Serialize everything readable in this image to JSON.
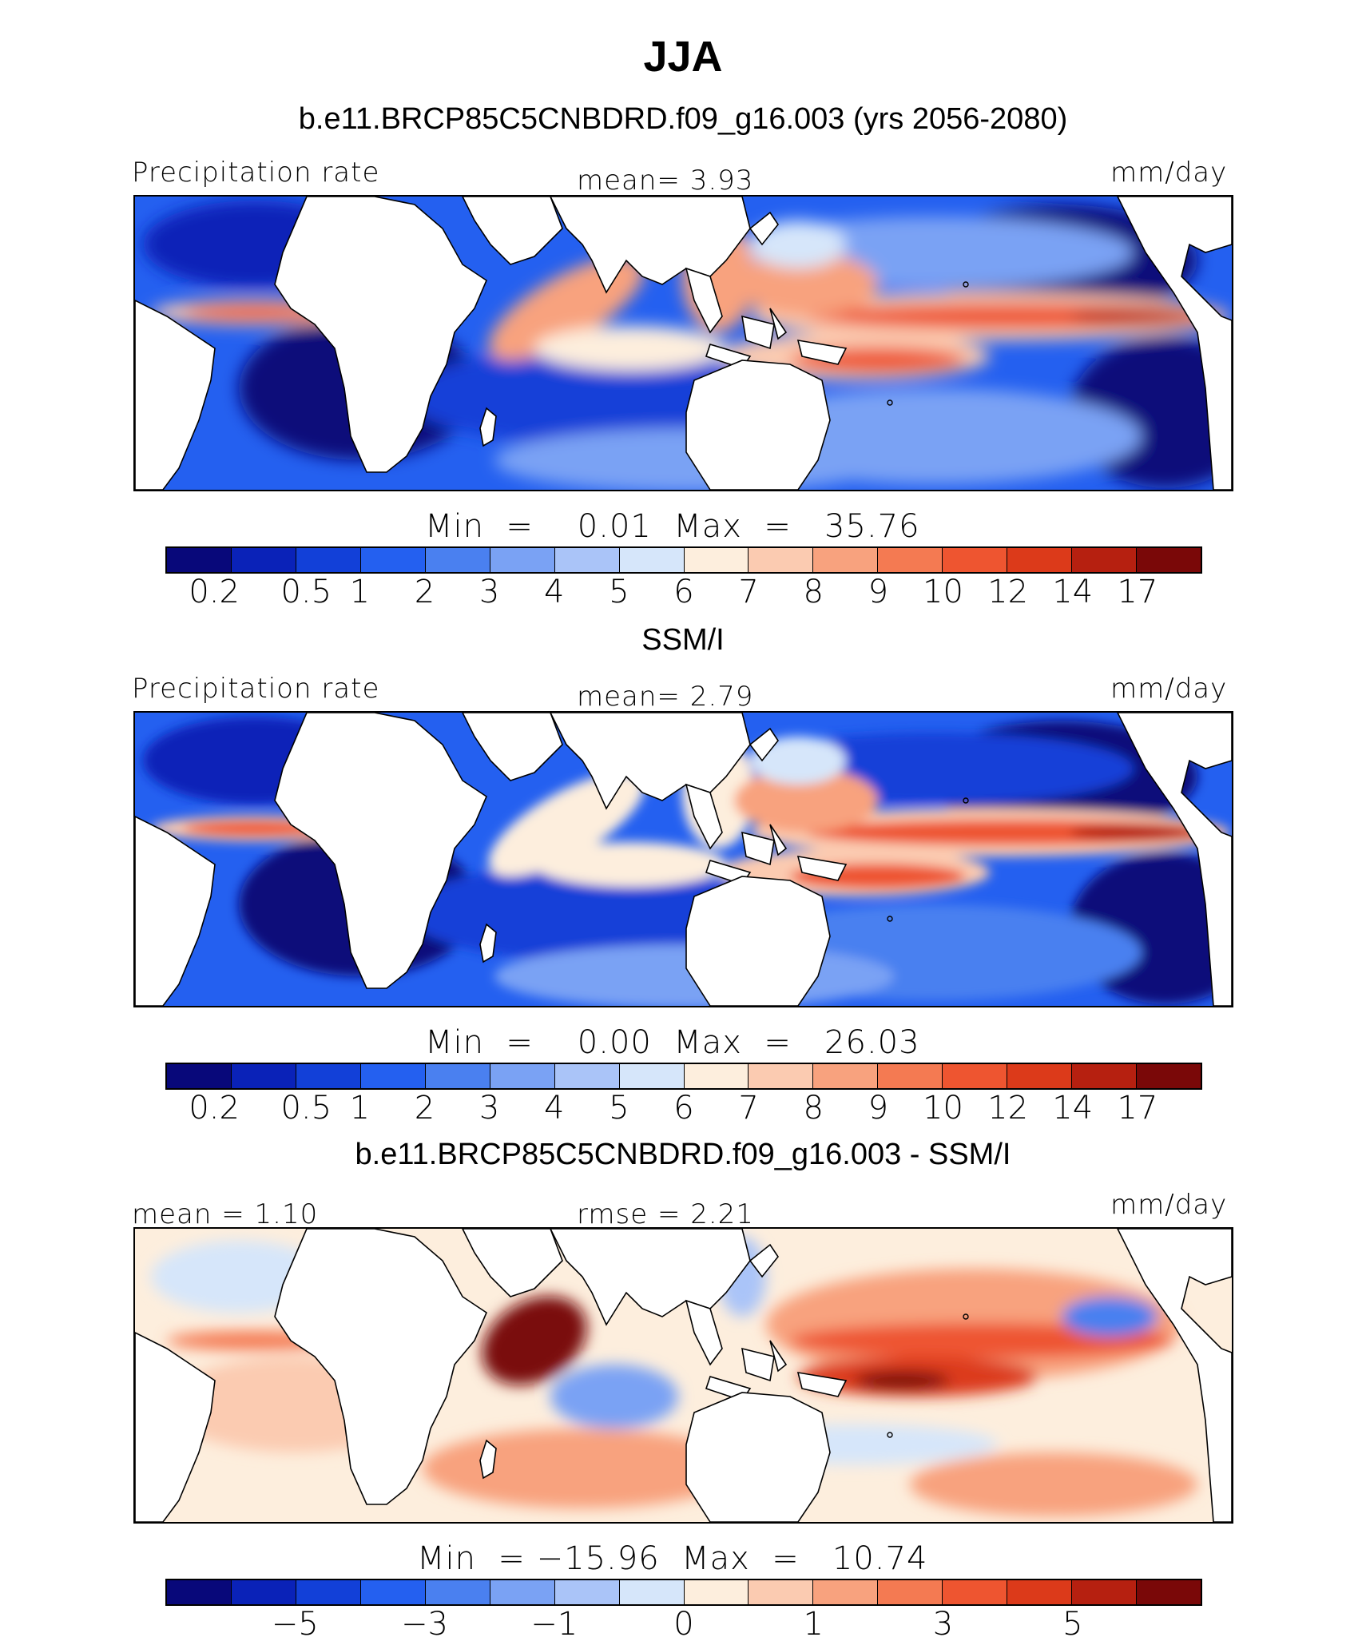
{
  "header": {
    "title": "JJA",
    "subtitle": "b.e11.BRCP85C5CNBDRD.f09_g16.003 (yrs 2056-2080)"
  },
  "colors": {
    "abs_scale": [
      "#08087a",
      "#0a22b8",
      "#1240d8",
      "#2460f0",
      "#4a80f0",
      "#7aa2f4",
      "#aac4f8",
      "#d6e6fa",
      "#fdeedd",
      "#fbcbb1",
      "#f8a27e",
      "#f47a52",
      "#ee5530",
      "#dc3a1a",
      "#b62010",
      "#7a0808"
    ],
    "diff_scale": [
      "#08087a",
      "#0a22b8",
      "#1240d8",
      "#2460f0",
      "#4a80f0",
      "#7aa2f4",
      "#aac4f8",
      "#d6e6fa",
      "#fdeedd",
      "#fbcbb1",
      "#f8a27e",
      "#f47a52",
      "#ee5530",
      "#dc3a1a",
      "#b62010",
      "#7a0808"
    ]
  },
  "panels": [
    {
      "top_left": "Precipitation rate",
      "top_center": "mean=    3.93",
      "top_right": "mm/day",
      "minmax": "Min  =    0.01  Max  =   35.76",
      "ticks": [
        "0.2",
        "0.5",
        "1",
        "2",
        "3",
        "4",
        "5",
        "6",
        "7",
        "8",
        "9",
        "10",
        "12",
        "14",
        "17"
      ],
      "pattern": "model"
    },
    {
      "section_title": "SSM/I",
      "top_left": "Precipitation rate",
      "top_center": "mean=    2.79",
      "top_right": "mm/day",
      "minmax": "Min  =    0.00  Max  =   26.03",
      "ticks": [
        "0.2",
        "0.5",
        "1",
        "2",
        "3",
        "4",
        "5",
        "6",
        "7",
        "8",
        "9",
        "10",
        "12",
        "14",
        "17"
      ],
      "pattern": "obs"
    },
    {
      "section_title": "b.e11.BRCP85C5CNBDRD.f09_g16.003 - SSM/I",
      "top_left": "mean =    1.10",
      "top_center": "rmse  =    2.21",
      "top_right": "mm/day",
      "minmax": "Min  = −15.96  Max  =   10.74",
      "ticks": [
        "−5",
        "−3",
        "−1",
        "0",
        "1",
        "3",
        "5"
      ],
      "pattern": "diff"
    }
  ],
  "chart_data": [
    {
      "type": "heatmap",
      "title": "b.e11.BRCP85C5CNBDRD.f09_g16.003 (yrs 2056-2080)",
      "variable": "Precipitation rate",
      "units": "mm/day",
      "mean": 3.93,
      "min": 0.01,
      "max": 35.76,
      "contour_levels": [
        0.2,
        0.5,
        1,
        2,
        3,
        4,
        5,
        6,
        7,
        8,
        9,
        10,
        12,
        14,
        17
      ]
    },
    {
      "type": "heatmap",
      "title": "SSM/I",
      "variable": "Precipitation rate",
      "units": "mm/day",
      "mean": 2.79,
      "min": 0.0,
      "max": 26.03,
      "contour_levels": [
        0.2,
        0.5,
        1,
        2,
        3,
        4,
        5,
        6,
        7,
        8,
        9,
        10,
        12,
        14,
        17
      ]
    },
    {
      "type": "heatmap",
      "title": "b.e11.BRCP85C5CNBDRD.f09_g16.003 - SSM/I",
      "units": "mm/day",
      "mean": 1.1,
      "rmse": 2.21,
      "min": -15.96,
      "max": 10.74,
      "tick_labels": [
        -5,
        -3,
        -1,
        0,
        1,
        3,
        5
      ]
    }
  ]
}
